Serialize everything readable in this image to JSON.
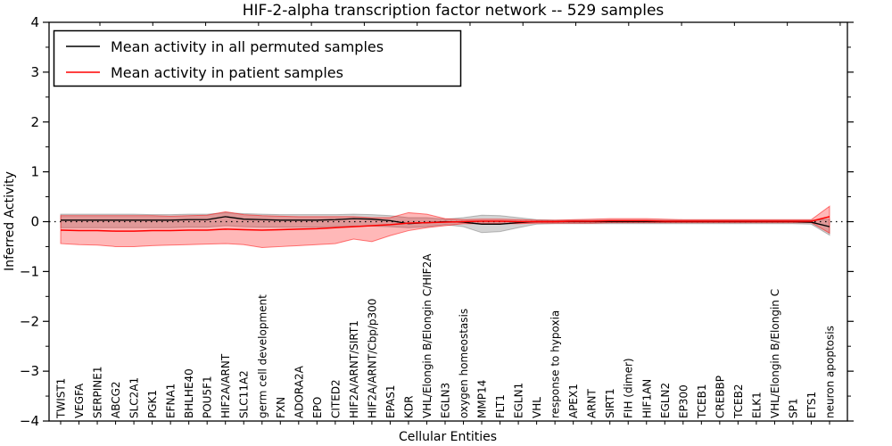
{
  "figure": {
    "title": "HIF-2-alpha transcription factor network -- 529 samples",
    "xlabel": "Cellular Entities",
    "ylabel": "Inferred Activity"
  },
  "legend": {
    "position": "upper left",
    "entries": [
      {
        "label": "Mean activity in all permuted samples",
        "color": "#000000"
      },
      {
        "label": "Mean activity in patient samples",
        "color": "#ff0000"
      }
    ]
  },
  "chart_data": {
    "type": "line",
    "title": "HIF-2-alpha transcription factor network -- 529 samples",
    "xlabel": "Cellular Entities",
    "ylabel": "Inferred Activity",
    "ylim": [
      -4,
      4
    ],
    "yticks": [
      -4,
      -3,
      -2,
      -1,
      0,
      1,
      2,
      3,
      4
    ],
    "y_minor_step": 0.5,
    "grid": false,
    "zero_line_style": "dotted",
    "background": "#ffffff",
    "categories": [
      "TWIST1",
      "VEGFA",
      "SERPINE1",
      "ABCG2",
      "SLC2A1",
      "PGK1",
      "EFNA1",
      "BHLHE40",
      "POU5F1",
      "HIF2A/ARNT",
      "SLC11A2",
      "germ cell development",
      "FXN",
      "ADORA2A",
      "EPO",
      "CITED2",
      "HIF2A/ARNT/SIRT1",
      "HIF2A/ARNT/Cbp/p300",
      "EPAS1",
      "KDR",
      "VHL/Elongin B/Elongin C/HIF2A",
      "EGLN3",
      "oxygen homeostasis",
      "MMP14",
      "FLT1",
      "EGLN1",
      "VHL",
      "response to hypoxia",
      "APEX1",
      "ARNT",
      "SIRT1",
      "FIH (dimer)",
      "HIF1AN",
      "EGLN2",
      "EP300",
      "TCEB1",
      "CREBBP",
      "TCEB2",
      "ELK1",
      "VHL/Elongin B/Elongin C",
      "SP1",
      "ETS1",
      "neuron apoptosis"
    ],
    "series": [
      {
        "name": "Mean activity in all permuted samples",
        "color": "#000000",
        "band_fill": "rgba(110,110,110,0.30)",
        "band_edge": "rgba(110,110,110,0.45)",
        "values": [
          0.03,
          0.03,
          0.03,
          0.03,
          0.03,
          0.03,
          0.03,
          0.04,
          0.04,
          0.1,
          0.05,
          0.04,
          0.03,
          0.03,
          0.03,
          0.04,
          0.06,
          0.05,
          0.02,
          -0.04,
          -0.02,
          0.0,
          -0.01,
          -0.05,
          -0.05,
          -0.02,
          0.0,
          0.0,
          0.0,
          0.0,
          0.0,
          0.0,
          0.0,
          0.0,
          0.0,
          0.0,
          0.0,
          0.0,
          0.0,
          0.0,
          0.0,
          -0.01,
          -0.1
        ],
        "band_high": [
          0.15,
          0.15,
          0.15,
          0.15,
          0.15,
          0.14,
          0.14,
          0.15,
          0.15,
          0.18,
          0.16,
          0.15,
          0.14,
          0.14,
          0.14,
          0.14,
          0.15,
          0.14,
          0.12,
          0.08,
          0.08,
          0.05,
          0.08,
          0.13,
          0.12,
          0.08,
          0.04,
          0.03,
          0.03,
          0.03,
          0.03,
          0.03,
          0.03,
          0.03,
          0.03,
          0.03,
          0.03,
          0.03,
          0.03,
          0.03,
          0.03,
          0.03,
          0.05
        ],
        "band_low": [
          -0.12,
          -0.12,
          -0.12,
          -0.12,
          -0.12,
          -0.12,
          -0.12,
          -0.11,
          -0.11,
          -0.08,
          -0.1,
          -0.11,
          -0.11,
          -0.11,
          -0.11,
          -0.1,
          -0.09,
          -0.09,
          -0.1,
          -0.12,
          -0.1,
          -0.06,
          -0.1,
          -0.22,
          -0.2,
          -0.12,
          -0.05,
          -0.04,
          -0.04,
          -0.04,
          -0.04,
          -0.04,
          -0.04,
          -0.04,
          -0.04,
          -0.04,
          -0.04,
          -0.04,
          -0.04,
          -0.04,
          -0.04,
          -0.05,
          -0.27
        ]
      },
      {
        "name": "Mean activity in patient samples",
        "color": "#ff0000",
        "band_fill": "rgba(255,0,0,0.28)",
        "band_edge": "rgba(255,0,0,0.50)",
        "values": [
          -0.17,
          -0.18,
          -0.18,
          -0.19,
          -0.19,
          -0.18,
          -0.18,
          -0.17,
          -0.17,
          -0.15,
          -0.16,
          -0.17,
          -0.16,
          -0.15,
          -0.14,
          -0.12,
          -0.1,
          -0.08,
          -0.06,
          -0.03,
          -0.02,
          -0.01,
          0.0,
          0.01,
          0.01,
          0.0,
          0.0,
          0.0,
          0.01,
          0.01,
          0.02,
          0.02,
          0.02,
          0.01,
          0.01,
          0.01,
          0.01,
          0.01,
          0.01,
          0.01,
          0.01,
          0.01,
          0.1
        ],
        "band_high": [
          0.12,
          0.12,
          0.12,
          0.12,
          0.12,
          0.12,
          0.11,
          0.12,
          0.13,
          0.2,
          0.14,
          0.12,
          0.11,
          0.1,
          0.1,
          0.1,
          0.1,
          0.08,
          0.08,
          0.18,
          0.15,
          0.06,
          0.04,
          0.05,
          0.05,
          0.04,
          0.03,
          0.03,
          0.04,
          0.05,
          0.06,
          0.06,
          0.06,
          0.05,
          0.04,
          0.04,
          0.04,
          0.04,
          0.04,
          0.04,
          0.04,
          0.04,
          0.31
        ],
        "band_low": [
          -0.44,
          -0.46,
          -0.47,
          -0.5,
          -0.5,
          -0.48,
          -0.47,
          -0.46,
          -0.45,
          -0.44,
          -0.46,
          -0.52,
          -0.5,
          -0.48,
          -0.46,
          -0.44,
          -0.35,
          -0.4,
          -0.28,
          -0.18,
          -0.12,
          -0.08,
          -0.04,
          -0.04,
          -0.04,
          -0.04,
          -0.03,
          -0.03,
          -0.03,
          -0.03,
          -0.02,
          -0.02,
          -0.02,
          -0.02,
          -0.02,
          -0.02,
          -0.02,
          -0.02,
          -0.02,
          -0.02,
          -0.02,
          -0.02,
          -0.23
        ]
      }
    ]
  }
}
